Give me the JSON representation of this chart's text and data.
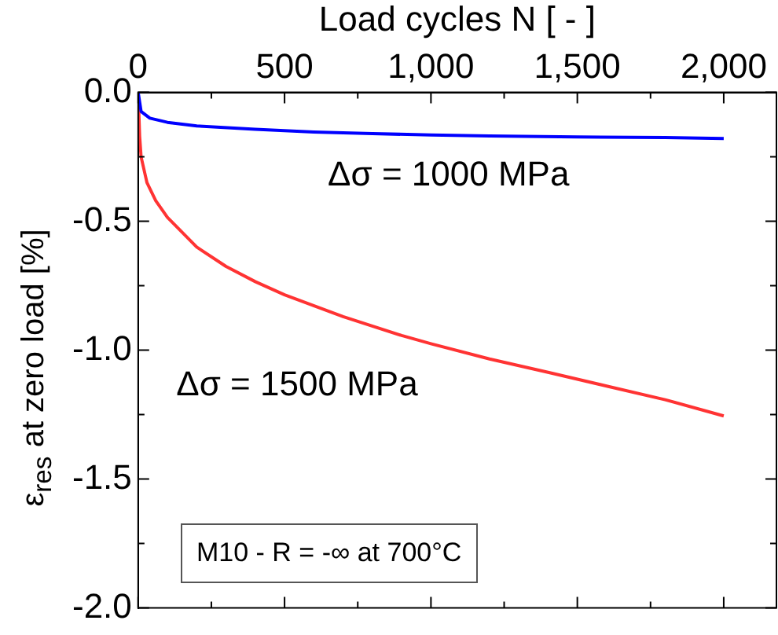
{
  "chart_data": {
    "type": "line",
    "xlabel": "Load cycles N [ - ]",
    "ylabel": "ε$_{res}$ at zero load [%]",
    "xlim": [
      0,
      2180
    ],
    "ylim": [
      -2,
      0
    ],
    "xticks": [
      0,
      {
        "value": 250,
        "label": null
      },
      500,
      {
        "value": 750,
        "label": null
      },
      {
        "value": 1000,
        "label": "1,000"
      },
      {
        "value": 1250,
        "label": null
      },
      {
        "value": 1500,
        "label": "1,500"
      },
      {
        "value": 1750,
        "label": null
      },
      {
        "value": 2000,
        "label": "2,000"
      }
    ],
    "yticks": [
      {
        "value": -2,
        "label": "-2.0"
      },
      {
        "value": -1.75,
        "label": null
      },
      {
        "value": -1.5,
        "label": "-1.5"
      },
      {
        "value": -1.25,
        "label": null
      },
      {
        "value": -1,
        "label": "-1.0"
      },
      {
        "value": -0.75,
        "label": null
      },
      {
        "value": -0.5,
        "label": "-0.5"
      },
      {
        "value": -0.25,
        "label": null
      },
      {
        "value": 0,
        "label": "0.0"
      }
    ],
    "grid": false,
    "legend": false,
    "marker": "none",
    "line_style": "solid",
    "annotations": [
      "M10 - R = -∞ at 700°C"
    ],
    "series": [
      {
        "name": "Δσ = 1000 MPa",
        "color": "#0000ff",
        "x": [
          0,
          10,
          40,
          100,
          200,
          400,
          600,
          800,
          1000,
          1200,
          1500,
          1800,
          2000
        ],
        "values": [
          0,
          -0.074,
          -0.1,
          -0.116,
          -0.13,
          -0.143,
          -0.154,
          -0.16,
          -0.165,
          -0.169,
          -0.173,
          -0.175,
          -0.179
        ]
      },
      {
        "name": "Δσ = 1500 MPa",
        "color": "#ff3333",
        "x": [
          0,
          5,
          10,
          30,
          60,
          100,
          200,
          300,
          400,
          500,
          700,
          900,
          1000,
          1200,
          1400,
          1600,
          1800,
          2000
        ],
        "values": [
          0,
          -0.17,
          -0.25,
          -0.35,
          -0.42,
          -0.485,
          -0.6,
          -0.675,
          -0.734,
          -0.785,
          -0.87,
          -0.943,
          -0.975,
          -1.034,
          -1.086,
          -1.139,
          -1.192,
          -1.255
        ]
      }
    ]
  }
}
